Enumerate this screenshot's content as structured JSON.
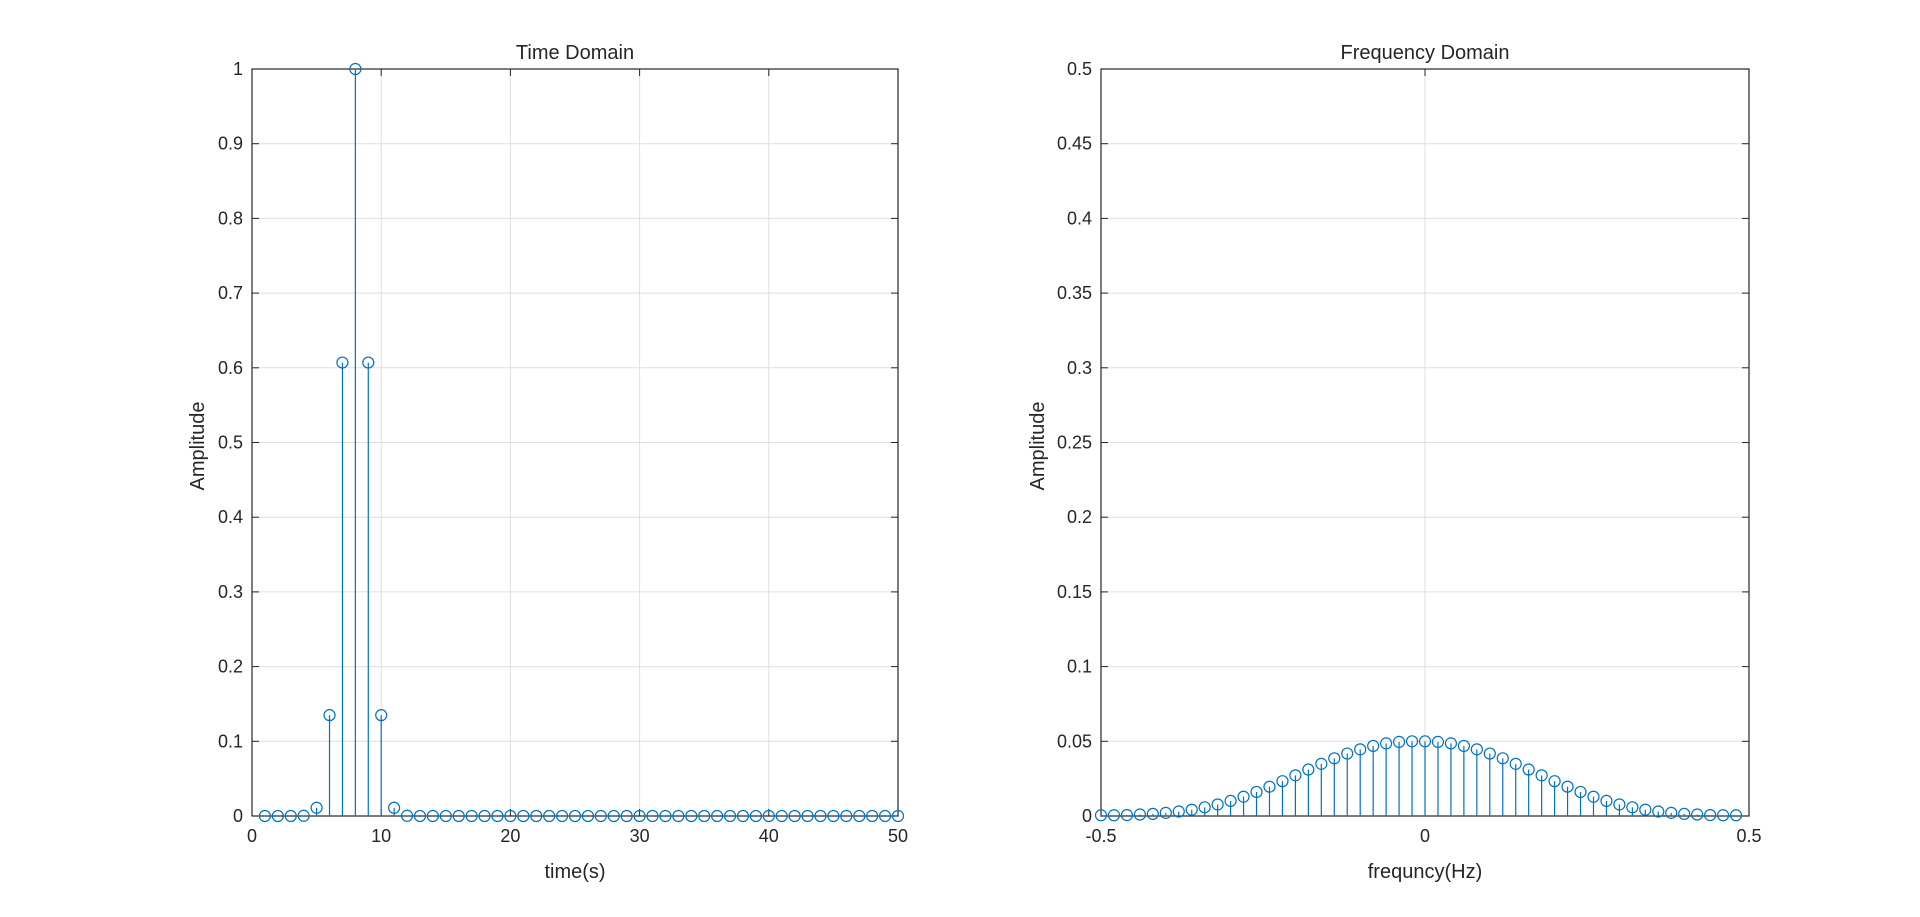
{
  "colors": {
    "series": "#0072BD",
    "grid": "#DFDFDF",
    "axes": "#262626",
    "background": "#FFFFFF"
  },
  "chart_data": [
    {
      "type": "stem",
      "title": "Time Domain",
      "xlabel": "time(s)",
      "ylabel": "Amplitude",
      "xlim": [
        0,
        50
      ],
      "ylim": [
        0,
        1
      ],
      "xticks": [
        0,
        10,
        20,
        30,
        40,
        50
      ],
      "xtick_labels": [
        "0",
        "10",
        "20",
        "30",
        "40",
        "50"
      ],
      "yticks": [
        0,
        0.1,
        0.2,
        0.3,
        0.4,
        0.5,
        0.6,
        0.7,
        0.8,
        0.9,
        1
      ],
      "ytick_labels": [
        "0",
        "0.1",
        "0.2",
        "0.3",
        "0.4",
        "0.5",
        "0.6",
        "0.7",
        "0.8",
        "0.9",
        "1"
      ],
      "grid": true,
      "marker": "open-circle",
      "series": [
        {
          "x": [
            1,
            2,
            3,
            4,
            5,
            6,
            7,
            8,
            9,
            10,
            11,
            12,
            13,
            14,
            15,
            16,
            17,
            18,
            19,
            20,
            21,
            22,
            23,
            24,
            25,
            26,
            27,
            28,
            29,
            30,
            31,
            32,
            33,
            34,
            35,
            36,
            37,
            38,
            39,
            40,
            41,
            42,
            43,
            44,
            45,
            46,
            47,
            48,
            49,
            50
          ],
          "y": [
            0,
            0,
            0,
            0.0003,
            0.011,
            0.135,
            0.607,
            1,
            0.607,
            0.135,
            0.011,
            0.0003,
            0,
            0,
            0,
            0,
            0,
            0,
            0,
            0,
            0,
            0,
            0,
            0,
            0,
            0,
            0,
            0,
            0,
            0,
            0,
            0,
            0,
            0,
            0,
            0,
            0,
            0,
            0,
            0,
            0,
            0,
            0,
            0,
            0,
            0,
            0,
            0,
            0,
            0
          ]
        }
      ]
    },
    {
      "type": "stem",
      "title": "Frequency Domain",
      "xlabel": "frequncy(Hz)",
      "ylabel": "Amplitude",
      "xlim": [
        -0.5,
        0.5
      ],
      "ylim": [
        0,
        0.5
      ],
      "xticks": [
        -0.5,
        0,
        0.5
      ],
      "xtick_labels": [
        "-0.5",
        "0",
        "0.5"
      ],
      "yticks": [
        0,
        0.05,
        0.1,
        0.15,
        0.2,
        0.25,
        0.3,
        0.35,
        0.4,
        0.45,
        0.5
      ],
      "ytick_labels": [
        "0",
        "0.05",
        "0.1",
        "0.15",
        "0.2",
        "0.25",
        "0.3",
        "0.35",
        "0.4",
        "0.45",
        "0.5"
      ],
      "grid": true,
      "marker": "open-circle",
      "series": [
        {
          "x": [
            -0.5,
            -0.48,
            -0.46,
            -0.44,
            -0.42,
            -0.4,
            -0.38,
            -0.36,
            -0.34,
            -0.32,
            -0.3,
            -0.28,
            -0.26,
            -0.24,
            -0.22,
            -0.2,
            -0.18,
            -0.16,
            -0.14,
            -0.12,
            -0.1,
            -0.08,
            -0.06,
            -0.04,
            -0.02,
            0,
            0.02,
            0.04,
            0.06,
            0.08,
            0.1,
            0.12,
            0.14,
            0.16,
            0.18,
            0.2,
            0.22,
            0.24,
            0.26,
            0.28,
            0.3,
            0.32,
            0.34,
            0.36,
            0.38,
            0.4,
            0.42,
            0.44,
            0.46,
            0.48
          ],
          "y": [
            0.0005,
            0.0005,
            0.0006,
            0.001,
            0.0014,
            0.0021,
            0.003,
            0.0042,
            0.0058,
            0.0077,
            0.0101,
            0.0129,
            0.0161,
            0.0196,
            0.0233,
            0.0272,
            0.0311,
            0.0349,
            0.0386,
            0.0418,
            0.0446,
            0.0469,
            0.0486,
            0.0496,
            0.05,
            0.05,
            0.0496,
            0.0486,
            0.0469,
            0.0446,
            0.0418,
            0.0386,
            0.0349,
            0.0311,
            0.0272,
            0.0233,
            0.0196,
            0.0161,
            0.0129,
            0.0101,
            0.0077,
            0.0058,
            0.0042,
            0.003,
            0.0021,
            0.0014,
            0.001,
            0.0006,
            0.0005,
            0.0005
          ]
        }
      ]
    }
  ]
}
